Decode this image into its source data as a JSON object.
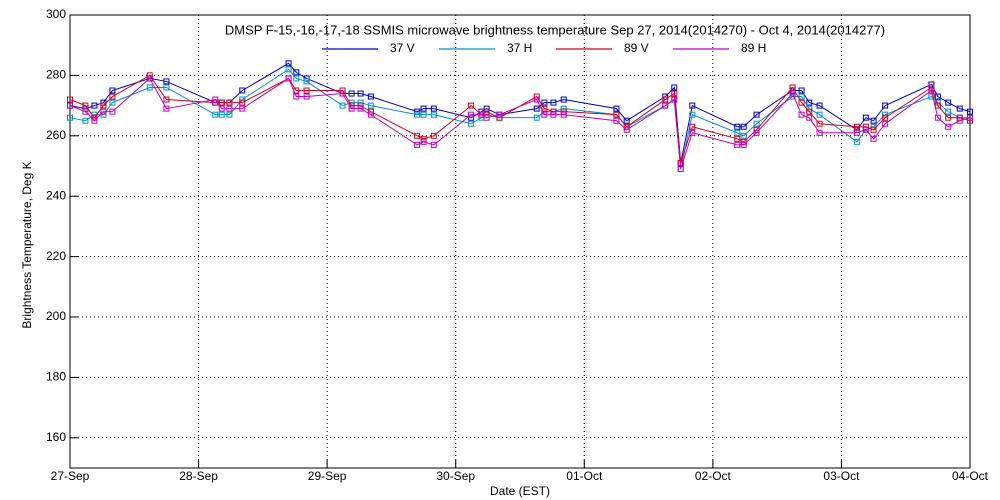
{
  "chart_data": {
    "type": "line",
    "title": "DMSP F-15,-16,-17,-18 SSMIS microwave brightness temperature Sep 27, 2014(2014270) - Oct  4, 2014(2014277)",
    "x_label": "Date (EST)",
    "y_label": "Brightness Temperature, Deg K",
    "x": [
      0,
      0.12,
      0.19,
      0.26,
      0.33,
      0.62,
      0.75,
      1.13,
      1.18,
      1.24,
      1.34,
      1.7,
      1.76,
      1.84,
      2.12,
      2.19,
      2.26,
      2.34,
      2.7,
      2.75,
      2.83,
      3.12,
      3.2,
      3.24,
      3.34,
      3.63,
      3.69,
      3.76,
      3.84,
      4.25,
      4.33,
      4.63,
      4.7,
      4.75,
      4.84,
      5.19,
      5.24,
      5.34,
      5.62,
      5.69,
      5.75,
      5.83,
      6.12,
      6.19,
      6.25,
      6.34,
      6.7,
      6.75,
      6.83,
      6.92,
      7.0
    ],
    "series": [
      {
        "name": "37 V",
        "color": "#0000c0",
        "values": [
          270,
          269,
          270,
          271,
          275,
          279,
          278,
          271,
          271,
          271,
          275,
          284,
          281,
          279,
          274,
          274,
          274,
          273,
          268,
          269,
          269,
          266,
          268,
          269,
          267,
          269,
          271,
          271,
          272,
          269,
          265,
          273,
          276,
          251,
          270,
          263,
          263,
          267,
          275,
          275,
          271,
          270,
          262,
          266,
          265,
          270,
          277,
          273,
          271,
          269,
          268
        ]
      },
      {
        "name": "37 H",
        "color": "#0090d0",
        "values": [
          266,
          265,
          267,
          267,
          271,
          276,
          276,
          267,
          267,
          267,
          272,
          282,
          279,
          278,
          270,
          271,
          271,
          270,
          267,
          267,
          267,
          264,
          266,
          267,
          266,
          266,
          268,
          268,
          269,
          267,
          263,
          270,
          272,
          249,
          267,
          261,
          260,
          264,
          273,
          273,
          269,
          267,
          258,
          262,
          263,
          267,
          273,
          271,
          268,
          266,
          266
        ]
      },
      {
        "name": "89 V",
        "color": "#d00020",
        "values": [
          272,
          270,
          266,
          270,
          273,
          280,
          272,
          271,
          271,
          271,
          271,
          279,
          275,
          275,
          275,
          270,
          270,
          268,
          260,
          259,
          260,
          270,
          267,
          268,
          266,
          273,
          269,
          268,
          268,
          267,
          263,
          272,
          274,
          251,
          263,
          259,
          258,
          262,
          276,
          271,
          268,
          264,
          263,
          263,
          262,
          266,
          276,
          270,
          266,
          266,
          265
        ]
      },
      {
        "name": "89 H",
        "color": "#c000c0",
        "values": [
          270,
          268,
          265,
          268,
          268,
          279,
          269,
          272,
          269,
          269,
          269,
          279,
          273,
          273,
          274,
          269,
          269,
          267,
          257,
          258,
          257,
          267,
          267,
          266,
          267,
          272,
          267,
          267,
          267,
          265,
          262,
          270,
          272,
          249,
          261,
          257,
          257,
          261,
          274,
          267,
          266,
          261,
          261,
          262,
          259,
          264,
          275,
          266,
          263,
          265,
          266
        ]
      }
    ],
    "xlim": [
      0,
      7
    ],
    "xticks": [
      {
        "value": 0,
        "label": "27-Sep"
      },
      {
        "value": 1,
        "label": "28-Sep"
      },
      {
        "value": 2,
        "label": "29-Sep"
      },
      {
        "value": 3,
        "label": "30-Sep"
      },
      {
        "value": 4,
        "label": "01-Oct"
      },
      {
        "value": 5,
        "label": "02-Oct"
      },
      {
        "value": 6,
        "label": "03-Oct"
      },
      {
        "value": 7,
        "label": "04-Oct"
      }
    ],
    "ylim": [
      150,
      300
    ],
    "yticks": [
      160,
      180,
      200,
      220,
      240,
      260,
      280,
      300
    ],
    "grid": true
  }
}
